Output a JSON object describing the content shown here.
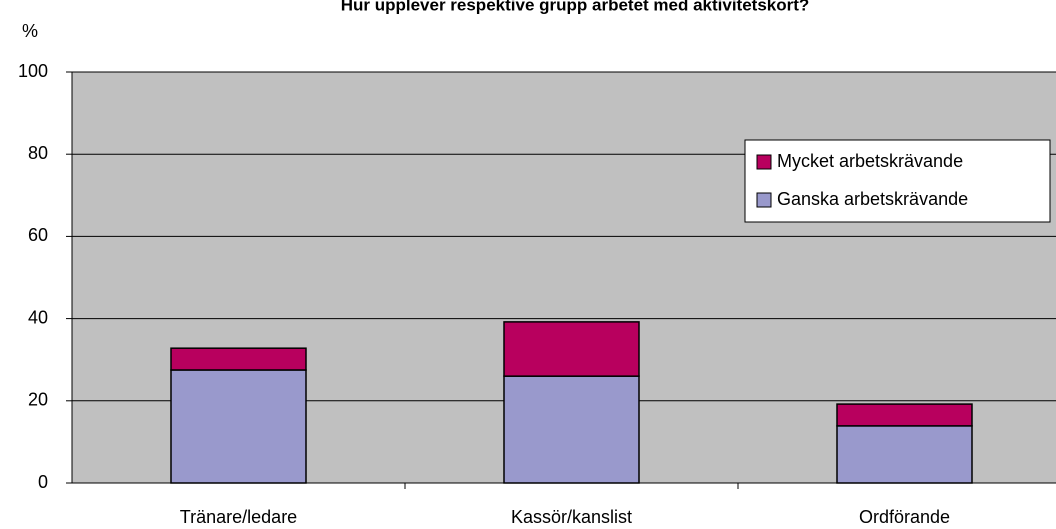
{
  "chart_data": {
    "type": "stacked_bar",
    "title": "Hur upplever respektive grupp arbetet med aktivitetskort?",
    "y_label": "%",
    "categories": [
      "Tränare/ledare",
      "Kassör/kanslist",
      "Ordförande"
    ],
    "series": [
      {
        "name": "Ganska arbetskrävande",
        "color": "#9999cc",
        "values": [
          27.5,
          26,
          13.9
        ]
      },
      {
        "name": "Mycket arbetskrävande",
        "color": "#b8005e",
        "values": [
          5.3,
          13.2,
          5.3
        ]
      }
    ],
    "ylim": [
      0,
      100
    ],
    "yticks": [
      0,
      20,
      40,
      60,
      80,
      100
    ],
    "grid": true,
    "legend": "upper right"
  }
}
